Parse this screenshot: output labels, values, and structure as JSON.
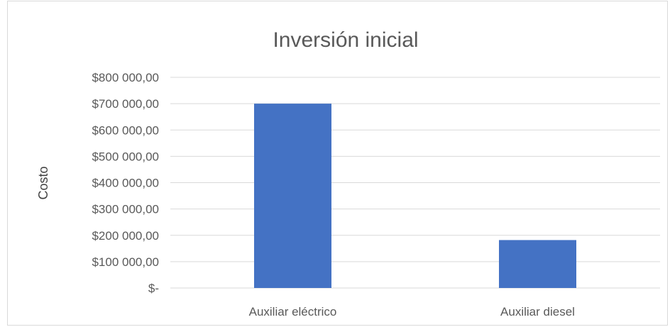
{
  "chart_data": {
    "type": "bar",
    "title": "Inversión inicial",
    "xlabel": "",
    "ylabel": "Costo",
    "categories": [
      "Auxiliar eléctrico",
      "Auxiliar diesel"
    ],
    "values": [
      700000,
      182000
    ],
    "ylim": [
      0,
      800000
    ],
    "y_ticks": [
      0,
      100000,
      200000,
      300000,
      400000,
      500000,
      600000,
      700000,
      800000
    ],
    "y_tick_labels": [
      "$-",
      "$100 000,00",
      "$200 000,00",
      "$300 000,00",
      "$400 000,00",
      "$500 000,00",
      "$600 000,00",
      "$700 000,00",
      "$800 000,00"
    ],
    "grid": true,
    "legend": "none",
    "bar_color": "#4472c4"
  }
}
